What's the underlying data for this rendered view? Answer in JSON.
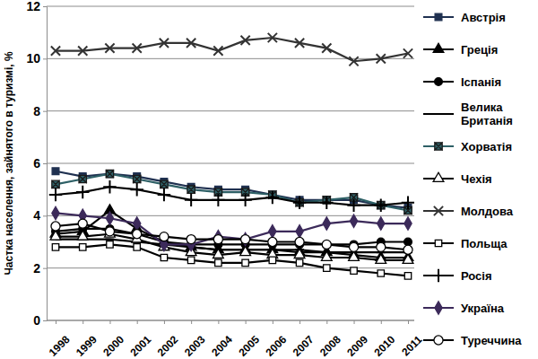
{
  "chart_data": {
    "type": "line",
    "y_label": "Частка населення, зайнятого в туризмі, %",
    "categories": [
      "1998",
      "1999",
      "2000",
      "2001",
      "2002",
      "2003",
      "2004",
      "2005",
      "2006",
      "2007",
      "2008",
      "2009",
      "2010",
      "2011"
    ],
    "ylim": [
      0,
      12
    ],
    "yticks": [
      0,
      2,
      4,
      6,
      8,
      10,
      12
    ],
    "grid": true,
    "legend": "right",
    "series": [
      {
        "name": "Австрія",
        "color": "#1f3050",
        "marker": "square",
        "values": [
          5.7,
          5.5,
          5.6,
          5.5,
          5.3,
          5.1,
          5.0,
          5.0,
          4.8,
          4.6,
          4.6,
          4.6,
          4.4,
          4.3
        ]
      },
      {
        "name": "Греція",
        "color": "#000000",
        "marker": "triangle",
        "values": [
          3.3,
          3.4,
          4.2,
          3.5,
          3.0,
          2.8,
          2.7,
          2.7,
          2.7,
          2.6,
          2.6,
          2.5,
          2.4,
          2.4
        ]
      },
      {
        "name": "Іспанія",
        "color": "#000000",
        "marker": "circle",
        "values": [
          3.4,
          3.5,
          3.5,
          3.3,
          3.0,
          2.9,
          2.9,
          2.9,
          2.9,
          2.9,
          2.9,
          2.9,
          3.0,
          3.0
        ]
      },
      {
        "name": "Велика Британія",
        "color": "#000000",
        "marker": "dash",
        "values": [
          3.1,
          3.1,
          3.1,
          3.0,
          2.9,
          2.8,
          2.7,
          2.7,
          2.7,
          2.7,
          2.6,
          2.6,
          2.6,
          2.6
        ]
      },
      {
        "name": "Хорватія",
        "color": "#2e6066",
        "marker": "square-x",
        "values": [
          5.2,
          5.4,
          5.6,
          5.4,
          5.2,
          5.0,
          4.9,
          4.9,
          4.8,
          4.5,
          4.6,
          4.7,
          4.4,
          4.2
        ]
      },
      {
        "name": "Чехія",
        "color": "#000000",
        "marker": "triangle-open",
        "values": [
          3.2,
          3.2,
          3.3,
          3.1,
          2.8,
          2.6,
          2.5,
          2.6,
          2.5,
          2.5,
          2.4,
          2.4,
          2.3,
          2.3
        ]
      },
      {
        "name": "Молдова",
        "color": "#333333",
        "marker": "x",
        "values": [
          10.3,
          10.3,
          10.4,
          10.4,
          10.6,
          10.6,
          10.3,
          10.7,
          10.8,
          10.6,
          10.4,
          9.9,
          10.0,
          10.2
        ]
      },
      {
        "name": "Польща",
        "color": "#000000",
        "marker": "square-open",
        "values": [
          2.8,
          2.8,
          2.9,
          2.8,
          2.4,
          2.3,
          2.2,
          2.2,
          2.3,
          2.2,
          2.0,
          1.9,
          1.8,
          1.7
        ]
      },
      {
        "name": "Росія",
        "color": "#000000",
        "marker": "plus",
        "values": [
          4.8,
          4.9,
          5.1,
          5.0,
          4.8,
          4.6,
          4.6,
          4.6,
          4.7,
          4.5,
          4.5,
          4.4,
          4.4,
          4.5
        ]
      },
      {
        "name": "Україна",
        "color": "#3c2a5a",
        "marker": "diamond",
        "values": [
          4.1,
          4.0,
          3.9,
          3.7,
          2.9,
          2.9,
          3.2,
          3.1,
          3.4,
          3.4,
          3.7,
          3.8,
          3.7,
          3.7
        ]
      },
      {
        "name": "Туреччина",
        "color": "#000000",
        "marker": "circle-open",
        "values": [
          3.6,
          3.7,
          3.4,
          3.3,
          3.2,
          3.1,
          3.1,
          3.1,
          3.0,
          3.0,
          2.9,
          2.8,
          2.8,
          2.7
        ]
      }
    ]
  }
}
